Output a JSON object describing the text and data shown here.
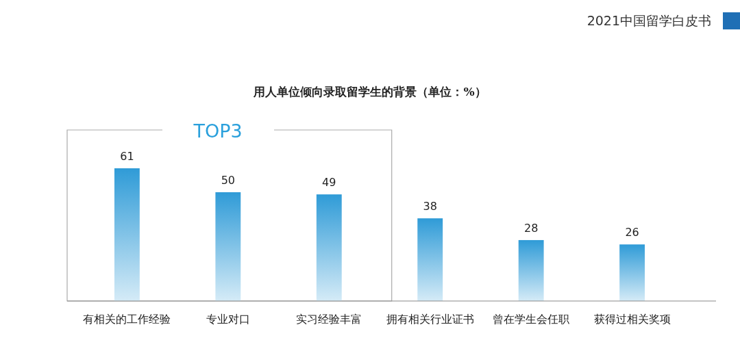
{
  "chart_data": {
    "type": "bar",
    "title": "用人单位倾向录取留学生的背景（单位：%）",
    "categories": [
      "有相关的工作经验",
      "专业对口",
      "实习经验丰富",
      "拥有相关行业证书",
      "曾在学生会任职",
      "获得过相关奖项"
    ],
    "values": [
      61,
      50,
      49,
      38,
      28,
      26
    ],
    "color": "#2f9bd7",
    "data_labels": true,
    "annotations": [
      "2021中国留学白皮书",
      "TOP3"
    ]
  }
}
